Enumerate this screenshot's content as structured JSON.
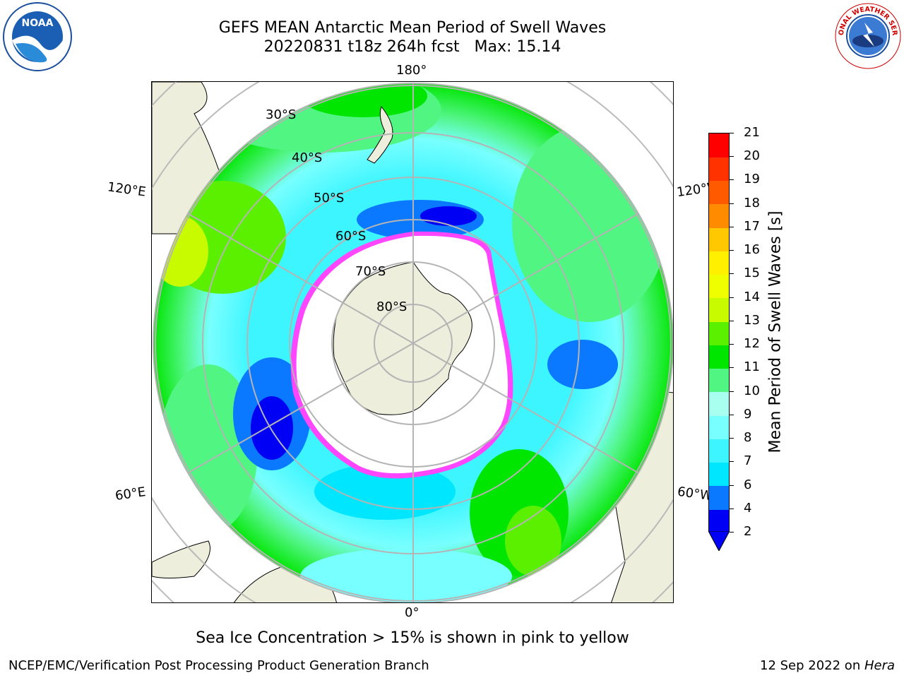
{
  "title": {
    "line1": "GEFS MEAN Antarctic Mean Period of Swell Waves",
    "line2": "20220831 t18z 264h fcst   Max: 15.14"
  },
  "map": {
    "longitude_labels": [
      "180°",
      "120°E",
      "120°W",
      "60°E",
      "60°W",
      "0°"
    ],
    "latitude_labels": [
      "30°S",
      "40°S",
      "50°S",
      "60°S",
      "70°S",
      "80°S"
    ]
  },
  "colorbar": {
    "label": "Mean Period of Swell Waves [s]",
    "ticks": [
      "2",
      "4",
      "6",
      "7",
      "8",
      "9",
      "10",
      "11",
      "12",
      "13",
      "14",
      "15",
      "16",
      "17",
      "18",
      "19",
      "20",
      "21"
    ],
    "colors": [
      "#0000f5",
      "#0a78ff",
      "#00e6ff",
      "#3cf5ff",
      "#78ffff",
      "#a8fff0",
      "#50f582",
      "#00e600",
      "#5af000",
      "#c8fa00",
      "#f0ff00",
      "#fff000",
      "#ffc800",
      "#ff8c00",
      "#ff5a00",
      "#ff3200",
      "#ff0000"
    ],
    "extend_color": "#0000f5"
  },
  "subtitle": "Sea Ice Concentration > 15% is shown in pink to yellow",
  "footer": {
    "left": "NCEP/EMC/Verification Post Processing Product Generation Branch",
    "date": "12 Sep 2022 on ",
    "host": "Hera"
  },
  "logos": {
    "noaa_text": "NOAA",
    "nws_text": "NATIONAL WEATHER SERVICE"
  }
}
